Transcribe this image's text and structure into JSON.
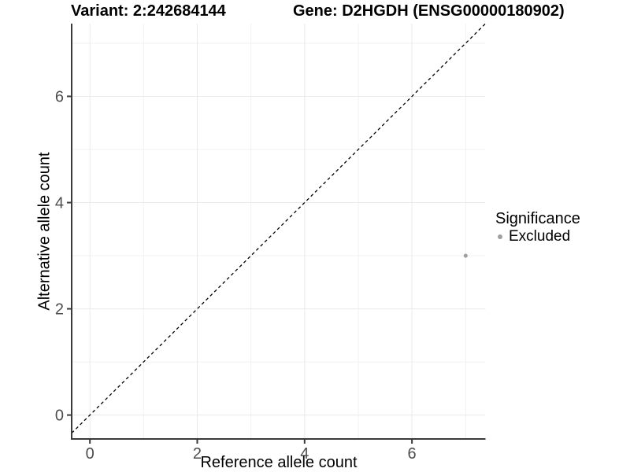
{
  "chart_data": {
    "type": "scatter",
    "title_left": "Variant: 2:242684144",
    "title_right": "Gene: D2HGDH (ENSG00000180902)",
    "xlabel": "Reference allele count",
    "ylabel": "Alternative allele count",
    "x_ticks": [
      0,
      2,
      4,
      6
    ],
    "y_ticks": [
      0,
      2,
      4,
      6
    ],
    "x_minor_ticks": [
      1,
      3,
      5,
      7
    ],
    "y_minor_ticks": [
      1,
      3,
      5,
      7
    ],
    "xlim": [
      -0.34,
      7.37
    ],
    "ylim": [
      -0.45,
      7.37
    ],
    "grid": "major and minor gridlines, light gray, white panel background",
    "reference_line": {
      "slope": 1,
      "intercept": 0,
      "style": "dashed",
      "color": "#000000"
    },
    "series": [
      {
        "name": "Excluded",
        "color": "#a0a0a0",
        "points": [
          {
            "x": 7,
            "y": 3
          }
        ]
      }
    ],
    "legend": {
      "title": "Significance",
      "position": "right",
      "items": [
        {
          "label": "Excluded",
          "color": "#a0a0a0"
        }
      ]
    }
  },
  "colors": {
    "axis_line": "#3a3a3a",
    "tick_label": "#4d4d4d",
    "grid_major": "#e9e9e9",
    "grid_minor": "#f1f1f1",
    "background": "#ffffff"
  }
}
